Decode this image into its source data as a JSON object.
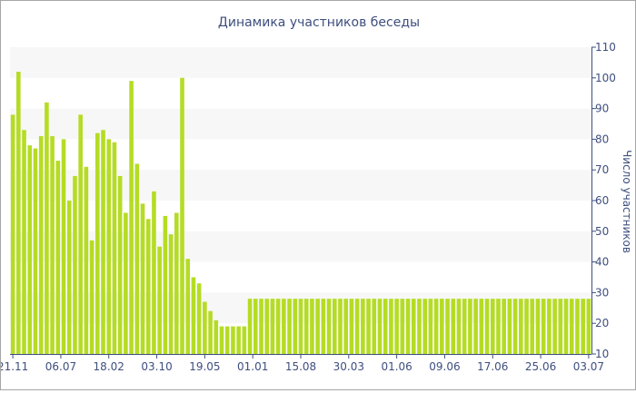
{
  "chart_data": {
    "type": "bar",
    "title": "Динамика участников беседы",
    "xlabel": "",
    "ylabel": "Число участников",
    "ylim": [
      10,
      110
    ],
    "yticks": [
      10,
      20,
      30,
      40,
      50,
      60,
      70,
      80,
      90,
      100,
      110
    ],
    "y_axis_position": "right",
    "grid": "alternating horizontal bands",
    "colors": {
      "bar": "#b5dc24",
      "band": "#f7f7f7",
      "text": "#3e4f7f",
      "axis": "#3e4f7f",
      "border": "#a6a6a6"
    },
    "x_tick_labels": [
      "21.11",
      "06.07",
      "18.02",
      "03.10",
      "19.05",
      "01.01",
      "15.08",
      "30.03",
      "01.06",
      "09.06",
      "17.06",
      "25.06",
      "03.07"
    ],
    "x_tick_positions": [
      0,
      8.5,
      17,
      25.5,
      34,
      42.5,
      51,
      59.5,
      68,
      76.5,
      85,
      93.5,
      102
    ],
    "values": [
      88,
      102,
      83,
      78,
      77,
      81,
      92,
      81,
      73,
      80,
      60,
      68,
      88,
      71,
      47,
      82,
      83,
      80,
      79,
      68,
      56,
      99,
      72,
      59,
      54,
      63,
      45,
      55,
      49,
      56,
      100,
      41,
      35,
      33,
      27,
      24,
      21,
      19,
      19,
      19,
      19,
      19,
      28,
      28,
      28,
      28,
      28,
      28,
      28,
      28,
      28,
      28,
      28,
      28,
      28,
      28,
      28,
      28,
      28,
      28,
      28,
      28,
      28,
      28,
      28,
      28,
      28,
      28,
      28,
      28,
      28,
      28,
      28,
      28,
      28,
      28,
      28,
      28,
      28,
      28,
      28,
      28,
      28,
      28,
      28,
      28,
      28,
      28,
      28,
      28,
      28,
      28,
      28,
      28,
      28,
      28,
      28,
      28,
      28,
      28,
      28,
      28,
      28
    ]
  }
}
